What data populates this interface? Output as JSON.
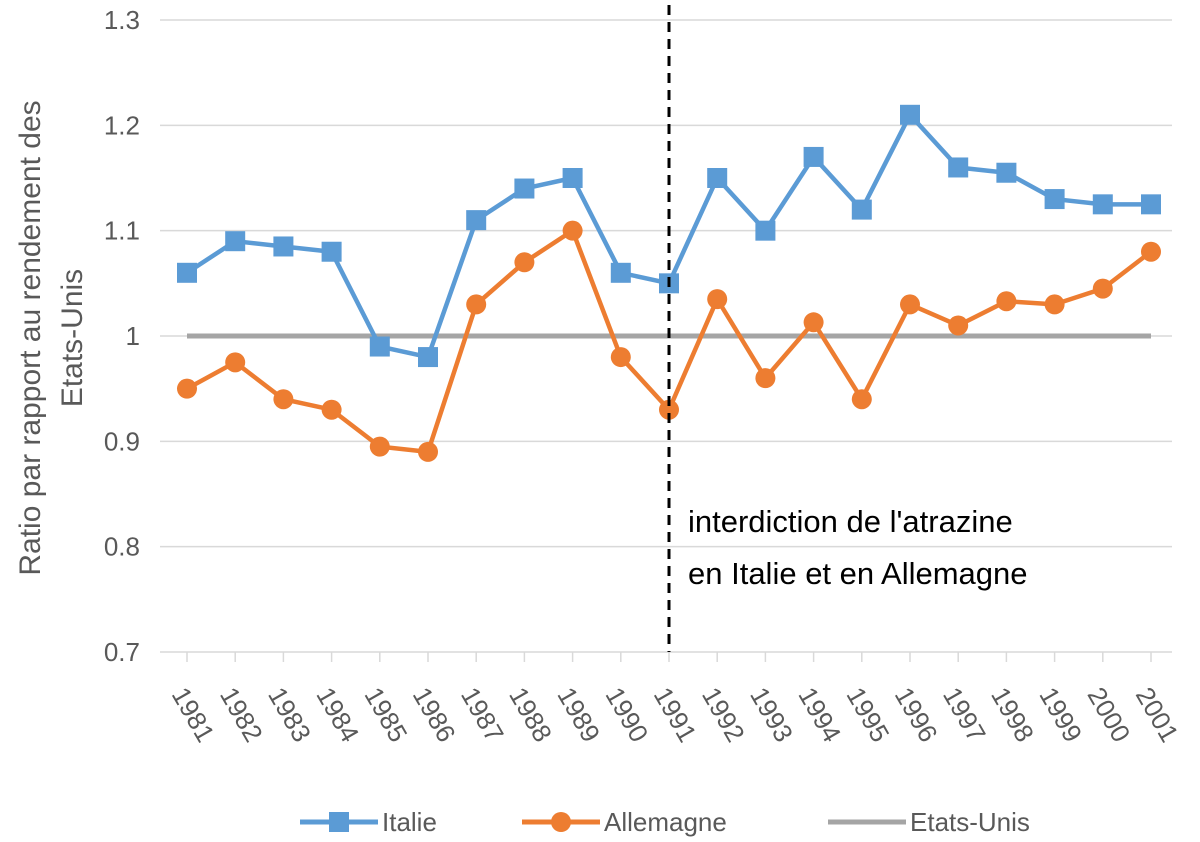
{
  "chart_data": {
    "type": "line",
    "title": "",
    "xlabel": "",
    "ylabel": "Ratio par rapport au rendement des Etats-Unis",
    "ylabel_lines": [
      "Ratio par rapport au rendement des",
      "Etats-Unis"
    ],
    "ylim": [
      0.7,
      1.3
    ],
    "yticks": [
      "0.7",
      "0.8",
      "0.9",
      "1",
      "1.1",
      "1.2",
      "1.3"
    ],
    "grid": true,
    "legend_position": "bottom",
    "categories": [
      "1981",
      "1982",
      "1983",
      "1984",
      "1985",
      "1986",
      "1987",
      "1988",
      "1989",
      "1990",
      "1991",
      "1992",
      "1993",
      "1994",
      "1995",
      "1996",
      "1997",
      "1998",
      "1999",
      "2000",
      "2001"
    ],
    "series": [
      {
        "name": "Italie",
        "color": "#5B9BD5",
        "marker": "square",
        "values": [
          1.06,
          1.09,
          1.085,
          1.08,
          0.99,
          0.98,
          1.11,
          1.14,
          1.15,
          1.06,
          1.05,
          1.15,
          1.1,
          1.17,
          1.12,
          1.21,
          1.16,
          1.155,
          1.13,
          1.125,
          1.125
        ]
      },
      {
        "name": "Allemagne",
        "color": "#ED7D31",
        "marker": "circle",
        "values": [
          0.95,
          0.975,
          0.94,
          0.93,
          0.895,
          0.89,
          1.03,
          1.07,
          1.1,
          0.98,
          0.93,
          1.035,
          0.96,
          1.013,
          0.94,
          1.03,
          1.01,
          1.033,
          1.03,
          1.045,
          1.08
        ]
      },
      {
        "name": "Etats-Unis",
        "color": "#A5A5A5",
        "marker": "none",
        "values": [
          1,
          1,
          1,
          1,
          1,
          1,
          1,
          1,
          1,
          1,
          1,
          1,
          1,
          1,
          1,
          1,
          1,
          1,
          1,
          1,
          1
        ]
      }
    ],
    "annotation": {
      "at_category": "1991",
      "lines": [
        "interdiction de l'atrazine",
        "en Italie et en Allemagne"
      ],
      "line_style": "dashed",
      "color": "#000000"
    }
  }
}
